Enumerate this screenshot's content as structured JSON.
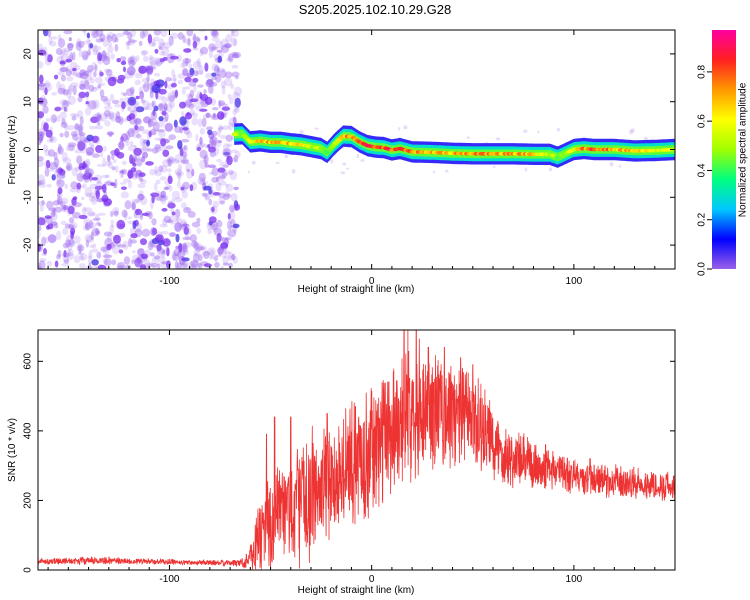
{
  "title": "S205.2025.102.10.29.G28",
  "colors": {
    "snr_line": "#ee3333",
    "background_noise": "#9a55ee",
    "frame": "#000000"
  },
  "chart_data": [
    {
      "type": "heatmap",
      "id": "spectrogram",
      "xlabel": "Height of straight line (km)",
      "ylabel": "Frequency (Hz)",
      "xlim": [
        -165,
        150
      ],
      "ylim": [
        -25,
        25
      ],
      "x_ticks": [
        -100,
        0,
        100
      ],
      "y_ticks": [
        -20,
        -10,
        0,
        10,
        20
      ],
      "colorbar": {
        "label": "Normalized spectral amplitude",
        "range": [
          0,
          0.97
        ],
        "ticks": [
          0.0,
          0.2,
          0.4,
          0.6,
          0.8
        ],
        "colormap": "rainbow",
        "colormap_stops": [
          "#9a60e8",
          "#0000ff",
          "#00c8ff",
          "#00ff80",
          "#a0ff00",
          "#ffff00",
          "#ff9900",
          "#ff2020",
          "#ff00a0"
        ]
      },
      "noise_region_x": [
        -165,
        -68
      ],
      "noise_frequency_span": [
        -25,
        25
      ],
      "ridge": {
        "x": [
          -68,
          -64,
          -60,
          -55,
          -50,
          -45,
          -40,
          -35,
          -30,
          -25,
          -22,
          -18,
          -14,
          -10,
          -6,
          -2,
          2,
          6,
          10,
          14,
          20,
          30,
          40,
          50,
          60,
          70,
          80,
          88,
          92,
          96,
          100,
          105,
          110,
          120,
          130,
          140,
          150
        ],
        "y": [
          3.2,
          3.3,
          1.6,
          1.8,
          1.5,
          1.5,
          1.2,
          1.0,
          0.6,
          0.2,
          -0.6,
          1.3,
          2.8,
          2.7,
          1.6,
          0.8,
          0.5,
          0.4,
          -0.1,
          0.2,
          -0.5,
          -0.6,
          -0.8,
          -0.9,
          -0.9,
          -0.9,
          -1.0,
          -1.0,
          -1.6,
          -0.8,
          0.0,
          0.2,
          0.0,
          0.0,
          -0.3,
          -0.2,
          0.0
        ],
        "amplitude": [
          0.55,
          0.5,
          0.6,
          0.65,
          0.7,
          0.75,
          0.7,
          0.65,
          0.55,
          0.5,
          0.45,
          0.55,
          0.7,
          0.75,
          0.8,
          0.85,
          0.85,
          0.8,
          0.85,
          0.9,
          0.75,
          0.7,
          0.7,
          0.75,
          0.75,
          0.72,
          0.7,
          0.55,
          0.45,
          0.55,
          0.65,
          0.75,
          0.8,
          0.75,
          0.65,
          0.6,
          0.55
        ],
        "half_width_hz": 1.4
      }
    },
    {
      "type": "line",
      "id": "snr",
      "xlabel": "Height of straight line (km)",
      "ylabel": "SNR (10 * v/v)",
      "xlim": [
        -165,
        150
      ],
      "ylim": [
        0,
        690
      ],
      "x_ticks": [
        -100,
        0,
        100
      ],
      "y_ticks": [
        0,
        200,
        400,
        600
      ],
      "series": [
        {
          "color": "#ee3333",
          "envelope_x": [
            -165,
            -150,
            -130,
            -110,
            -90,
            -70,
            -62,
            -58,
            -55,
            -50,
            -45,
            -40,
            -35,
            -30,
            -25,
            -20,
            -15,
            -10,
            -5,
            0,
            5,
            10,
            15,
            20,
            25,
            30,
            35,
            40,
            45,
            50,
            55,
            60,
            65,
            70,
            75,
            80,
            85,
            90,
            95,
            100,
            105,
            110,
            115,
            120,
            125,
            130,
            135,
            140,
            145,
            150
          ],
          "envelope_mean": [
            25,
            26,
            27,
            24,
            22,
            20,
            22,
            60,
            110,
            130,
            155,
            180,
            200,
            215,
            235,
            255,
            280,
            300,
            320,
            340,
            370,
            410,
            450,
            480,
            470,
            460,
            450,
            445,
            440,
            430,
            400,
            360,
            340,
            320,
            310,
            300,
            295,
            290,
            280,
            270,
            260,
            260,
            255,
            255,
            250,
            250,
            245,
            245,
            240,
            240
          ],
          "envelope_amplitude": [
            10,
            12,
            12,
            10,
            9,
            9,
            20,
            90,
            150,
            170,
            180,
            190,
            200,
            200,
            200,
            200,
            200,
            200,
            200,
            210,
            210,
            220,
            230,
            230,
            210,
            200,
            190,
            180,
            170,
            160,
            150,
            130,
            110,
            100,
            90,
            80,
            75,
            70,
            65,
            60,
            60,
            55,
            55,
            55,
            55,
            50,
            50,
            50,
            50,
            50
          ],
          "peak_points": [
            [
              -62,
              45
            ],
            [
              -52,
              390
            ],
            [
              -48,
              440
            ],
            [
              -40,
              440
            ],
            [
              -22,
              450
            ],
            [
              -8,
              470
            ],
            [
              8,
              540
            ],
            [
              16,
              690
            ],
            [
              22,
              690
            ],
            [
              28,
              640
            ],
            [
              36,
              640
            ],
            [
              44,
              610
            ],
            [
              50,
              590
            ],
            [
              86,
              360
            ],
            [
              108,
              320
            ]
          ],
          "sample_count": 2400
        }
      ]
    }
  ]
}
